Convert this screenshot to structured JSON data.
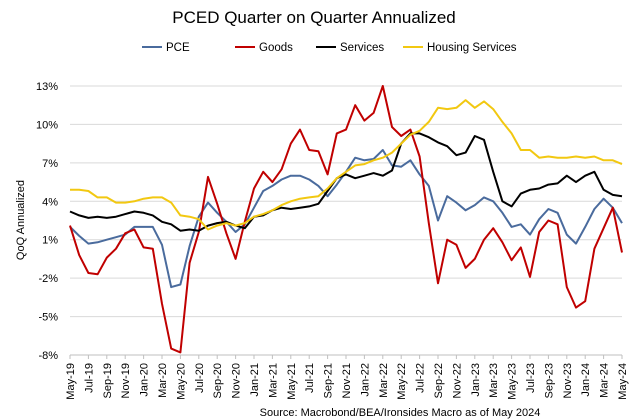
{
  "chart_data": {
    "type": "line",
    "title": "PCED Quarter on Quarter Annualized",
    "ylabel": "QoQ Annualized",
    "xlabel": "",
    "source": "Source: Macrobond/BEA/Ironsides Macro as of May 2024",
    "ylim": [
      -8,
      13
    ],
    "yticks": [
      13,
      10,
      7,
      4,
      1,
      -2,
      -5,
      -8
    ],
    "ytick_labels": [
      "13%",
      "10%",
      "7%",
      "4%",
      "1%",
      "-2%",
      "-5%",
      "-8%"
    ],
    "x": [
      "May-19",
      "Jun-19",
      "Jul-19",
      "Aug-19",
      "Sep-19",
      "Oct-19",
      "Nov-19",
      "Dec-19",
      "Jan-20",
      "Feb-20",
      "Mar-20",
      "Apr-20",
      "May-20",
      "Jun-20",
      "Jul-20",
      "Aug-20",
      "Sep-20",
      "Oct-20",
      "Nov-20",
      "Dec-20",
      "Jan-21",
      "Feb-21",
      "Mar-21",
      "Apr-21",
      "May-21",
      "Jun-21",
      "Jul-21",
      "Aug-21",
      "Sep-21",
      "Oct-21",
      "Nov-21",
      "Dec-21",
      "Jan-22",
      "Feb-22",
      "Mar-22",
      "Apr-22",
      "May-22",
      "Jun-22",
      "Jul-22",
      "Aug-22",
      "Sep-22",
      "Oct-22",
      "Nov-22",
      "Dec-22",
      "Jan-23",
      "Feb-23",
      "Mar-23",
      "Apr-23",
      "May-23",
      "Jun-23",
      "Jul-23",
      "Aug-23",
      "Sep-23",
      "Oct-23",
      "Nov-23",
      "Dec-23",
      "Jan-24",
      "Feb-24",
      "Mar-24",
      "Apr-24",
      "May-24"
    ],
    "tick_labels": [
      "May-19",
      "Jul-19",
      "Sep-19",
      "Nov-19",
      "Jan-20",
      "Mar-20",
      "May-20",
      "Jul-20",
      "Sep-20",
      "Nov-20",
      "Jan-21",
      "Mar-21",
      "May-21",
      "Jul-21",
      "Sep-21",
      "Nov-21",
      "Jan-22",
      "Mar-22",
      "May-22",
      "Jul-22",
      "Sep-22",
      "Nov-22",
      "Jan-23",
      "Mar-23",
      "May-23",
      "Jul-23",
      "Sep-23",
      "Nov-23",
      "Jan-24",
      "Mar-24",
      "May-24"
    ],
    "grid": true,
    "legend_position": "top",
    "series": [
      {
        "name": "PCE",
        "color": "#4a6b9d",
        "values": [
          2.0,
          1.3,
          0.7,
          0.8,
          1.0,
          1.2,
          1.4,
          2.0,
          2.0,
          2.0,
          0.6,
          -2.7,
          -2.5,
          0.5,
          2.8,
          3.9,
          3.1,
          2.4,
          1.6,
          2.2,
          3.5,
          4.8,
          5.2,
          5.7,
          6.0,
          6.0,
          5.7,
          5.2,
          4.4,
          5.3,
          6.3,
          7.4,
          7.2,
          7.3,
          8.0,
          6.8,
          6.7,
          7.2,
          6.1,
          5.2,
          2.5,
          4.4,
          3.9,
          3.3,
          3.7,
          4.3,
          4.0,
          3.1,
          2.0,
          2.2,
          1.4,
          2.6,
          3.4,
          3.1,
          1.4,
          0.7,
          2.0,
          3.4,
          4.2,
          3.5,
          2.3
        ]
      },
      {
        "name": "Goods",
        "color": "#c00000",
        "values": [
          2.1,
          -0.2,
          -1.6,
          -1.7,
          -0.4,
          0.3,
          1.5,
          1.8,
          0.4,
          0.3,
          -4.0,
          -7.5,
          -7.8,
          -0.8,
          1.6,
          5.9,
          3.8,
          1.5,
          -0.5,
          2.4,
          5.0,
          6.3,
          5.5,
          6.5,
          8.5,
          9.6,
          8.0,
          7.9,
          6.1,
          9.3,
          9.6,
          11.5,
          10.3,
          10.9,
          13.0,
          9.8,
          9.1,
          9.6,
          7.5,
          2.3,
          -2.4,
          1.0,
          0.6,
          -1.2,
          -0.5,
          1.0,
          1.9,
          0.8,
          -0.6,
          0.4,
          -1.9,
          1.6,
          2.5,
          2.2,
          -2.7,
          -4.3,
          -3.8,
          0.3,
          1.9,
          3.5,
          0.0
        ]
      },
      {
        "name": "Services",
        "color": "#000000",
        "values": [
          3.2,
          2.9,
          2.7,
          2.8,
          2.7,
          2.8,
          3.0,
          3.2,
          3.1,
          2.9,
          2.4,
          2.2,
          1.7,
          1.8,
          1.7,
          2.1,
          2.3,
          2.4,
          2.1,
          1.9,
          2.8,
          2.9,
          3.3,
          3.5,
          3.4,
          3.5,
          3.6,
          3.8,
          4.8,
          5.8,
          6.1,
          5.8,
          6.0,
          6.2,
          6.0,
          6.4,
          8.5,
          9.3,
          9.3,
          9.0,
          8.6,
          8.3,
          7.6,
          7.8,
          9.1,
          8.8,
          6.3,
          4.0,
          3.6,
          4.6,
          4.9,
          5.0,
          5.3,
          5.4,
          6.0,
          5.5,
          6.0,
          6.3,
          4.9,
          4.5,
          4.4
        ]
      },
      {
        "name": "Housing Services",
        "color": "#f2c811",
        "values": [
          4.9,
          4.9,
          4.8,
          4.3,
          4.3,
          3.9,
          3.9,
          4.0,
          4.2,
          4.3,
          4.3,
          3.9,
          2.9,
          2.8,
          2.6,
          1.8,
          2.1,
          2.3,
          2.1,
          2.3,
          2.8,
          3.0,
          3.3,
          3.7,
          4.0,
          4.2,
          4.3,
          4.4,
          5.0,
          5.8,
          6.3,
          6.8,
          6.9,
          7.2,
          7.4,
          7.8,
          8.5,
          9.2,
          9.5,
          10.2,
          11.3,
          11.2,
          11.3,
          11.9,
          11.3,
          11.8,
          11.2,
          10.2,
          9.3,
          8.0,
          8.0,
          7.4,
          7.5,
          7.4,
          7.4,
          7.5,
          7.4,
          7.5,
          7.2,
          7.2,
          6.9
        ]
      }
    ]
  }
}
